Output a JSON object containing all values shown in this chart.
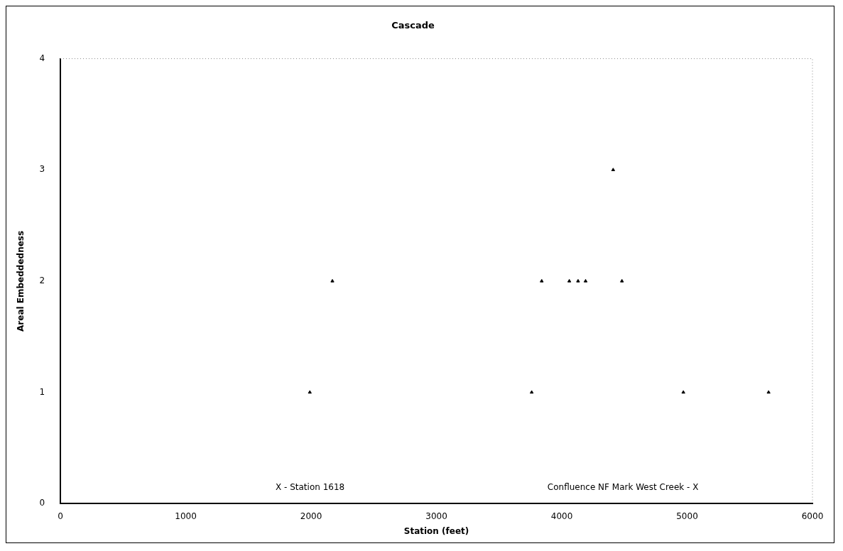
{
  "chart_data": {
    "type": "scatter",
    "title": "Cascade",
    "xlabel": "Station (feet)",
    "ylabel": "Areal Embeddedness",
    "x": [
      1990,
      2170,
      3760,
      3840,
      4060,
      4130,
      4190,
      4410,
      4480,
      4970,
      5650
    ],
    "values": [
      1,
      2,
      1,
      2,
      2,
      2,
      2,
      3,
      2,
      1,
      1
    ],
    "color": "#000000",
    "marker": "triangle",
    "xlim": [
      0,
      6000
    ],
    "xticks": [
      0,
      1000,
      2000,
      3000,
      4000,
      5000,
      6000
    ],
    "ylim": [
      0,
      4
    ],
    "yticks": [
      0,
      1,
      2,
      3,
      4
    ],
    "grid": false,
    "legend": false,
    "annotations": [
      "X - Station 1618",
      "Confluence NF Mark West Creek - X"
    ]
  }
}
